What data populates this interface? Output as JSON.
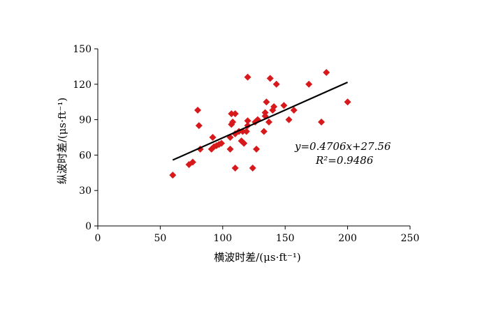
{
  "chart_data": {
    "type": "scatter",
    "xlabel": "横波时差/(μs·ft⁻¹)",
    "ylabel": "纵波时差/(μs·ft⁻¹)",
    "xlim": [
      0,
      250
    ],
    "ylim": [
      0,
      150
    ],
    "xticks": [
      "0",
      "50",
      "100",
      "150",
      "200",
      "250"
    ],
    "yticks": [
      "0",
      "30",
      "60",
      "90",
      "120",
      "150"
    ],
    "grid": false,
    "marker_color": "#d7191c",
    "line_color": "#000000",
    "series": [
      {
        "points": [
          [
            60,
            43
          ],
          [
            73,
            52
          ],
          [
            76,
            54
          ],
          [
            80,
            98
          ],
          [
            81,
            85
          ],
          [
            82,
            65
          ],
          [
            91,
            65
          ],
          [
            92,
            75
          ],
          [
            93,
            67
          ],
          [
            95,
            68
          ],
          [
            97,
            69
          ],
          [
            99,
            70
          ],
          [
            106,
            65
          ],
          [
            106,
            75
          ],
          [
            107,
            86
          ],
          [
            107,
            95
          ],
          [
            108,
            88
          ],
          [
            110,
            49
          ],
          [
            110,
            78
          ],
          [
            110,
            95
          ],
          [
            113,
            80
          ],
          [
            115,
            72
          ],
          [
            116,
            80
          ],
          [
            117,
            70
          ],
          [
            119,
            80
          ],
          [
            120,
            85
          ],
          [
            120,
            89
          ],
          [
            120,
            126
          ],
          [
            124,
            49
          ],
          [
            126,
            88
          ],
          [
            127,
            65
          ],
          [
            128,
            90
          ],
          [
            133,
            80
          ],
          [
            134,
            93
          ],
          [
            134,
            96
          ],
          [
            135,
            105
          ],
          [
            137,
            88
          ],
          [
            138,
            125
          ],
          [
            140,
            98
          ],
          [
            141,
            101
          ],
          [
            143,
            120
          ],
          [
            149,
            102
          ],
          [
            153,
            90
          ],
          [
            157,
            98
          ],
          [
            169,
            120
          ],
          [
            179,
            88
          ],
          [
            183,
            130
          ],
          [
            200,
            105
          ]
        ]
      }
    ],
    "trendline": {
      "slope": 0.4706,
      "intercept": 27.56,
      "x_range": [
        60,
        200
      ]
    },
    "annotations": {
      "equation": "y=0.4706x+27.56",
      "r2": "R²=0.9486"
    }
  }
}
